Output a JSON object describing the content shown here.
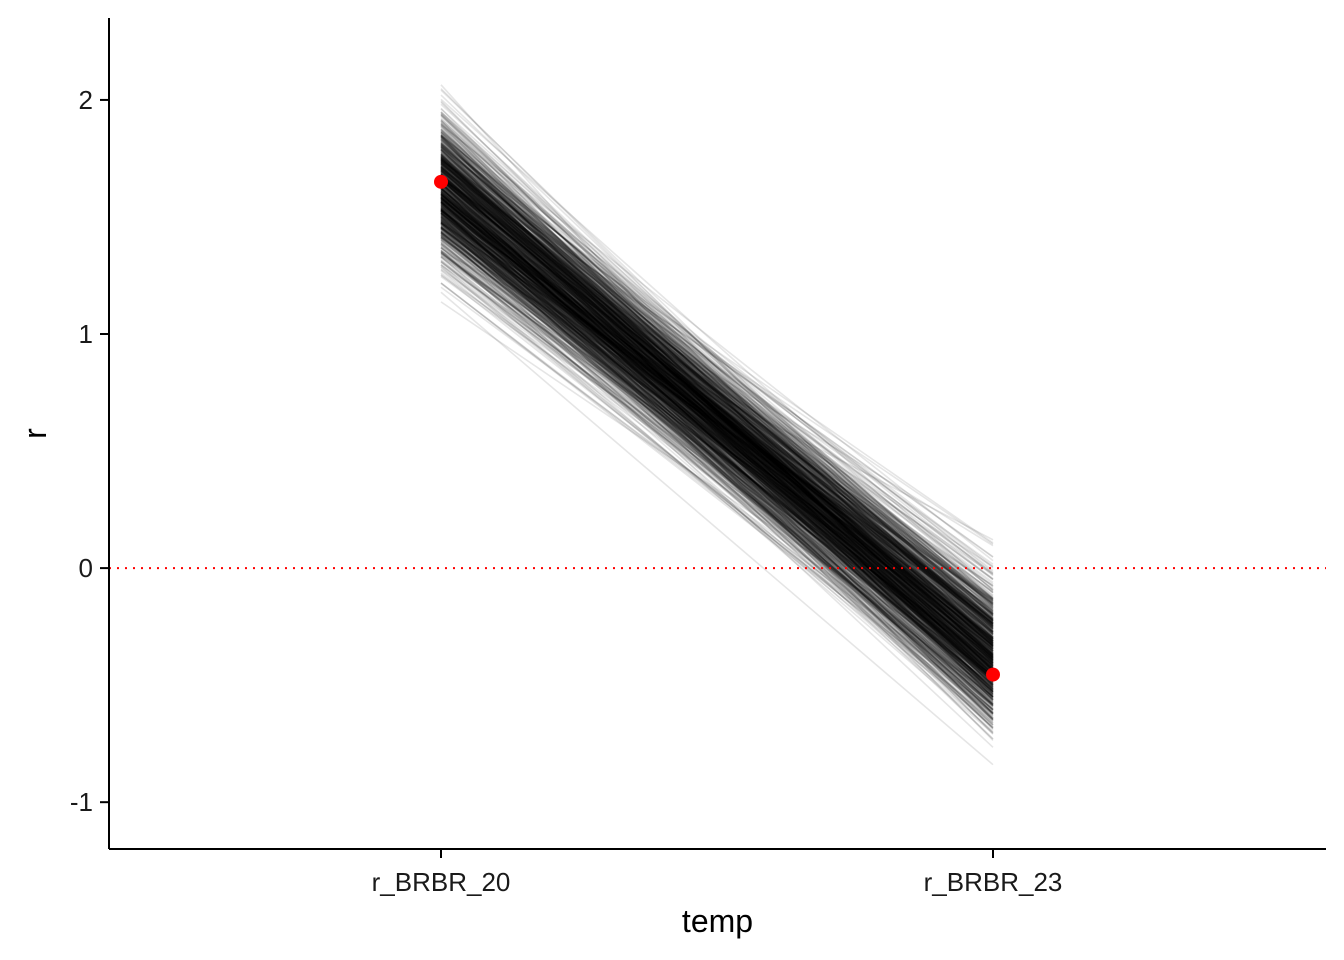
{
  "chart_data": {
    "type": "line",
    "xlabel": "temp",
    "ylabel": "r",
    "categories": [
      "r_BRBR_20",
      "r_BRBR_23"
    ],
    "y_ticks": [
      -1,
      0,
      1,
      2
    ],
    "ylim": [
      -1.2,
      2.35
    ],
    "grid": false,
    "legend": "none",
    "reference_line": {
      "y": 0,
      "style": "dotted",
      "color": "#ff0000"
    },
    "highlight_points": {
      "color": "#ff0000",
      "values": [
        1.65,
        -0.455
      ]
    },
    "posterior_lines": {
      "count": 1000,
      "color": "#000000",
      "opacity": 0.1,
      "start_mean": 1.62,
      "start_sd": 0.15,
      "start_min": 1.02,
      "start_max": 2.2,
      "end_mean": -0.38,
      "end_sd": 0.15,
      "end_min": -1.03,
      "end_max": 0.19,
      "correlation": 0.35
    }
  }
}
